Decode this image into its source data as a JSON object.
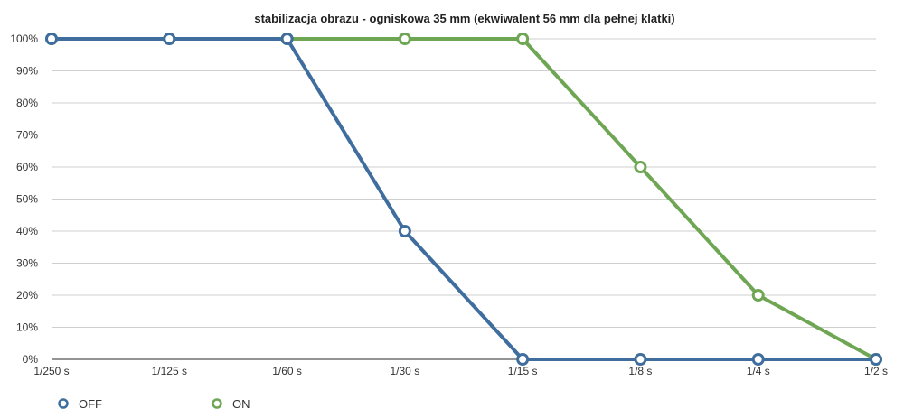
{
  "chart_data": {
    "type": "line",
    "title": "stabilizacja obrazu - ogniskowa 35 mm (ekwiwalent 56 mm dla pełnej klatki)",
    "xlabel": "",
    "ylabel": "",
    "categories": [
      "1/250 s",
      "1/125 s",
      "1/60 s",
      "1/30 s",
      "1/15 s",
      "1/8 s",
      "1/4 s",
      "1/2 s"
    ],
    "ylim": [
      0,
      100
    ],
    "yticks": [
      "0%",
      "10%",
      "20%",
      "30%",
      "40%",
      "50%",
      "60%",
      "70%",
      "80%",
      "90%",
      "100%"
    ],
    "grid": true,
    "legend": "bottom-left",
    "series": [
      {
        "name": "OFF",
        "color": "#3f6e9e",
        "values": [
          100,
          100,
          100,
          40,
          0,
          0,
          0,
          0
        ]
      },
      {
        "name": "ON",
        "color": "#6fa654",
        "values": [
          100,
          100,
          100,
          100,
          100,
          60,
          20,
          0
        ]
      }
    ]
  }
}
